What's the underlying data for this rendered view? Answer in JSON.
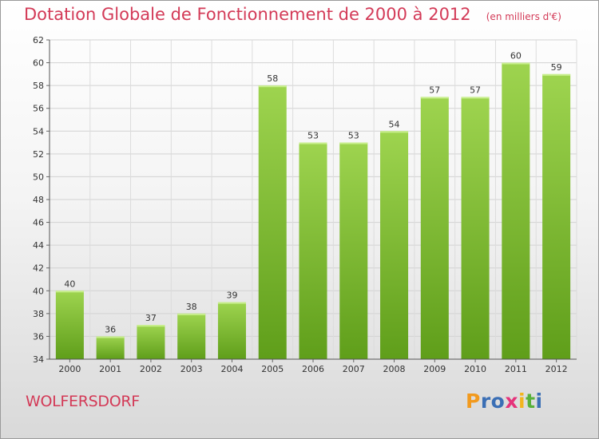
{
  "header": {
    "title": "Dotation Globale de Fonctionnement de 2000 à 2012",
    "subtitle": "(en milliers d'€)"
  },
  "footer": {
    "place_name": "WOLFERSDORF",
    "logo_letters": [
      "P",
      "r",
      "o",
      "x",
      "i",
      "t",
      "i"
    ],
    "logo_colors": [
      "#f29a1e",
      "#3b6fb5",
      "#3b6fb5",
      "#e5337a",
      "#f2b51e",
      "#58b13a",
      "#3b6fb5"
    ]
  },
  "colors": {
    "bar_top": "#9ed44f",
    "bar_bottom": "#5f9e1a",
    "accent": "#d33a57"
  },
  "chart_data": {
    "type": "bar",
    "title": "Dotation Globale de Fonctionnement de 2000 à 2012",
    "subtitle": "(en milliers d'€)",
    "categories": [
      "2000",
      "2001",
      "2002",
      "2003",
      "2004",
      "2005",
      "2006",
      "2007",
      "2008",
      "2009",
      "2010",
      "2011",
      "2012"
    ],
    "values": [
      40,
      36,
      37,
      38,
      39,
      58,
      53,
      53,
      54,
      57,
      57,
      60,
      59
    ],
    "ylim": [
      34,
      62
    ],
    "yticks": [
      34,
      36,
      38,
      40,
      42,
      44,
      46,
      48,
      50,
      52,
      54,
      56,
      58,
      60,
      62
    ],
    "grid": true,
    "xlabel": "",
    "ylabel": ""
  }
}
